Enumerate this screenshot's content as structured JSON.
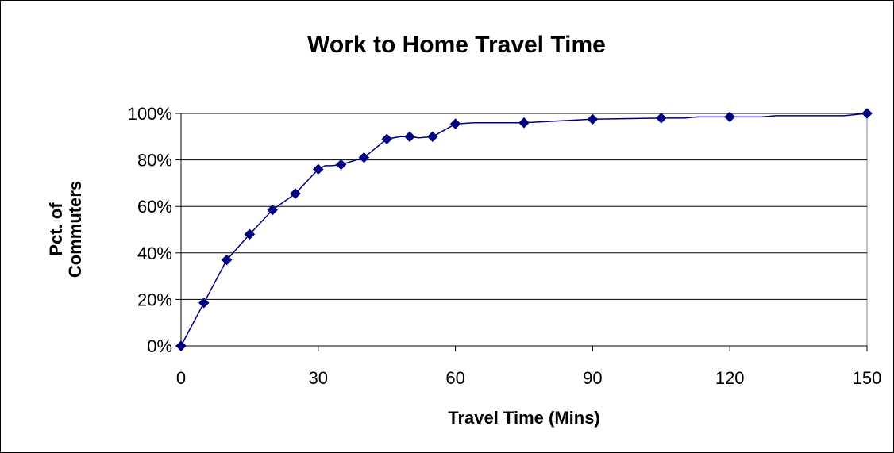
{
  "chart_data": {
    "type": "line",
    "title": "Work to Home Travel Time",
    "xlabel": "Travel Time (Mins)",
    "ylabel_lines": [
      "Pct. of",
      "Commuters"
    ],
    "xlim": [
      0,
      150
    ],
    "ylim": [
      0,
      100
    ],
    "x_ticks": [
      0,
      30,
      60,
      90,
      120,
      150
    ],
    "y_ticks": [
      0,
      20,
      40,
      60,
      80,
      100
    ],
    "y_tick_labels": [
      "0%",
      "20%",
      "40%",
      "60%",
      "80%",
      "100%"
    ],
    "grid": "horizontal",
    "legend": "none",
    "series": [
      {
        "color": "#000080",
        "marker": "diamond",
        "line": [
          [
            0,
            0
          ],
          [
            5,
            18.5
          ],
          [
            10,
            37
          ],
          [
            15,
            48
          ],
          [
            20,
            58.5
          ],
          [
            25,
            65.5
          ],
          [
            30,
            76
          ],
          [
            31.5,
            77.5
          ],
          [
            33,
            77.5
          ],
          [
            35,
            78
          ],
          [
            40,
            81
          ],
          [
            45,
            89
          ],
          [
            48,
            90
          ],
          [
            50,
            90
          ],
          [
            52,
            89.5
          ],
          [
            55,
            90
          ],
          [
            60,
            95.5
          ],
          [
            64,
            96
          ],
          [
            70,
            96
          ],
          [
            75,
            96
          ],
          [
            90,
            97.5
          ],
          [
            105,
            98
          ],
          [
            110,
            98
          ],
          [
            113,
            98.5
          ],
          [
            120,
            98.5
          ],
          [
            127,
            98.5
          ],
          [
            130,
            99
          ],
          [
            145,
            99
          ],
          [
            150,
            100
          ]
        ],
        "points": [
          [
            0,
            0
          ],
          [
            5,
            18.5
          ],
          [
            10,
            37
          ],
          [
            15,
            48
          ],
          [
            20,
            58.5
          ],
          [
            25,
            65.5
          ],
          [
            30,
            76
          ],
          [
            35,
            78
          ],
          [
            40,
            81
          ],
          [
            45,
            89
          ],
          [
            50,
            90
          ],
          [
            55,
            90
          ],
          [
            60,
            95.5
          ],
          [
            75,
            96
          ],
          [
            90,
            97.5
          ],
          [
            105,
            98
          ],
          [
            120,
            98.5
          ],
          [
            150,
            100
          ]
        ]
      }
    ]
  }
}
